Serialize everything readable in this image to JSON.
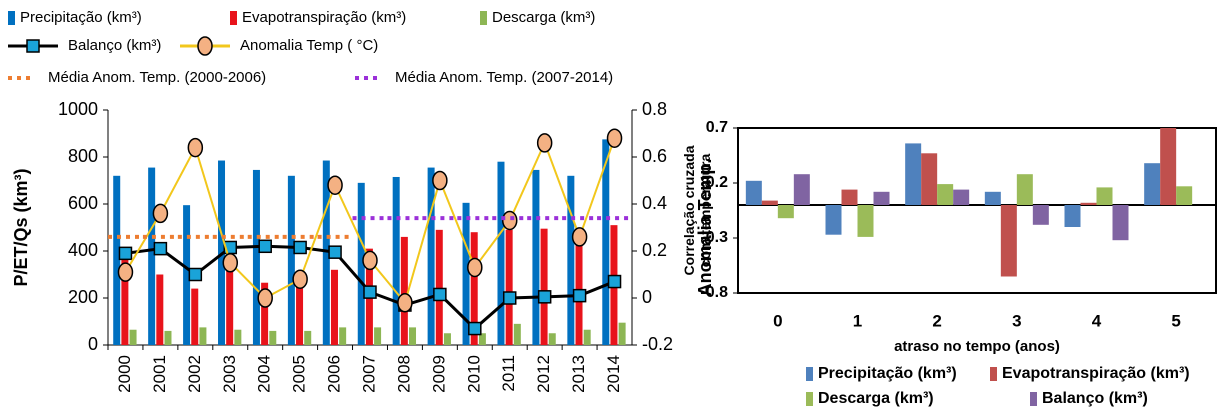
{
  "chart_data": [
    {
      "type": "bar",
      "categories": [
        "2000",
        "2001",
        "2002",
        "2003",
        "2004",
        "2005",
        "2006",
        "2007",
        "2008",
        "2009",
        "2010",
        "2011",
        "2012",
        "2013",
        "2014"
      ],
      "ylabel": "P/ET/Qs (km³)",
      "y2label": "Anomalia Temp.",
      "ylim": [
        0,
        1000
      ],
      "yticks": [
        0,
        200,
        400,
        600,
        800,
        1000
      ],
      "y2lim": [
        -0.2,
        0.8
      ],
      "y2ticks": [
        -0.2,
        0,
        0.2,
        0.4,
        0.6,
        0.8
      ],
      "series": [
        {
          "name": "Precipitação (km³)",
          "color": "#0070c0",
          "values": [
            720,
            755,
            595,
            785,
            745,
            720,
            785,
            690,
            715,
            755,
            605,
            780,
            745,
            720,
            875
          ]
        },
        {
          "name": "Evapotranspiração (km³)",
          "color": "#e8131b",
          "values": [
            390,
            300,
            240,
            380,
            265,
            300,
            320,
            410,
            460,
            490,
            480,
            490,
            495,
            470,
            510
          ]
        },
        {
          "name": "Descarga (km³)",
          "color": "#8db654",
          "values": [
            65,
            60,
            75,
            65,
            60,
            60,
            75,
            75,
            75,
            50,
            50,
            90,
            50,
            65,
            95
          ]
        },
        {
          "name": "Balanço (km³)",
          "color": "#000000",
          "type": "line",
          "marker": "square",
          "marker_color": "#1aa3d9",
          "values": [
            390,
            410,
            300,
            415,
            420,
            415,
            395,
            225,
            170,
            215,
            70,
            200,
            205,
            210,
            270
          ]
        },
        {
          "name": "Anomalia Temp ( °C)",
          "color": "#f2c71c",
          "type": "line",
          "axis": "y2",
          "marker": "circle",
          "marker_color": "#f4b183",
          "values": [
            0.11,
            0.36,
            0.64,
            0.15,
            0.0,
            0.08,
            0.48,
            0.16,
            -0.02,
            0.5,
            0.13,
            0.33,
            0.66,
            0.26,
            0.68
          ]
        },
        {
          "name": "Média Anom. Temp. (2000-2006)",
          "color": "#ed7d31",
          "type": "line",
          "axis": "y2",
          "style": "dotted",
          "values": [
            0.26,
            0.26,
            0.26,
            0.26,
            0.26,
            0.26,
            0.26,
            null,
            null,
            null,
            null,
            null,
            null,
            null,
            null
          ]
        },
        {
          "name": "Média Anom. Temp. (2007-2014)",
          "color": "#9b30d9",
          "type": "line",
          "axis": "y2",
          "style": "dotted",
          "values": [
            null,
            null,
            null,
            null,
            null,
            null,
            null,
            0.34,
            0.34,
            0.34,
            0.34,
            0.34,
            0.34,
            0.34,
            0.34
          ]
        }
      ]
    },
    {
      "type": "bar",
      "categories": [
        "0",
        "1",
        "2",
        "3",
        "4",
        "5"
      ],
      "xlabel": "atraso no tempo (anos)",
      "ylabel": "Correlação cruzada com temperatura",
      "ylim": [
        -0.8,
        0.7
      ],
      "yticks": [
        -0.8,
        -0.3,
        0.2,
        0.7
      ],
      "series": [
        {
          "name": "Precipitação (km³)",
          "color": "#4f81bd",
          "values": [
            0.22,
            -0.27,
            0.56,
            0.12,
            -0.2,
            0.38
          ]
        },
        {
          "name": "Evapotranspiração (km³)",
          "color": "#c0504d",
          "values": [
            0.04,
            0.14,
            0.47,
            -0.65,
            0.02,
            0.7
          ]
        },
        {
          "name": "Descarga (km³)",
          "color": "#9bbb59",
          "values": [
            -0.12,
            -0.29,
            0.19,
            0.28,
            0.16,
            0.17
          ]
        },
        {
          "name": "Balanço (km³)",
          "color": "#8064a2",
          "values": [
            0.28,
            0.12,
            0.14,
            -0.18,
            -0.32,
            null
          ]
        }
      ]
    }
  ]
}
